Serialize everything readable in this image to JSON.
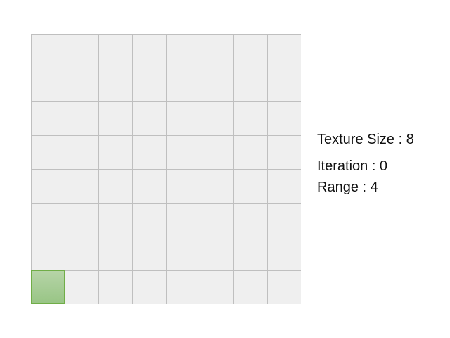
{
  "grid": {
    "rows": 8,
    "cols": 8,
    "active_cells": [
      {
        "row": 7,
        "col": 0
      }
    ],
    "colors": {
      "cell_fill": "#efefef",
      "grid_line": "#bfbfbf",
      "active_fill": "#a9cf94",
      "active_border": "#70ad47"
    }
  },
  "info": {
    "texture_size": "Texture Size : 8",
    "iteration": "Iteration : 0",
    "range": "Range : 4"
  }
}
